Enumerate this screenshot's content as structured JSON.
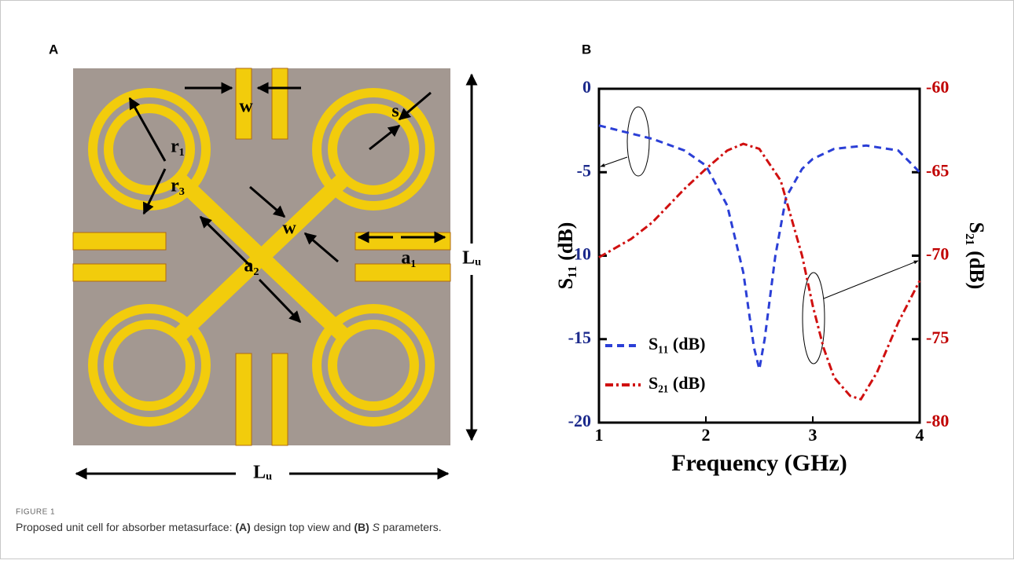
{
  "panel_a": {
    "label": "A",
    "labels": [
      "w",
      "s",
      "r₁",
      "r₃",
      "w",
      "a₂",
      "a₁",
      "Lᵤ",
      "Lᵤ"
    ]
  },
  "panel_b": {
    "label": "B"
  },
  "chart_data": {
    "type": "line",
    "xlabel": "Frequency (GHz)",
    "ylabel": "S₁₁ (dB)",
    "y2label": "S₂₁ (dB)",
    "xlim": [
      1,
      4
    ],
    "xticks": [
      1,
      2,
      3,
      4
    ],
    "ylim": [
      -20,
      0
    ],
    "yticks": [
      0,
      -5,
      {
        "value": -10,
        "label": "10"
      },
      -15,
      -20
    ],
    "y2lim": [
      -80,
      -60
    ],
    "y2ticks": [
      -60,
      -65,
      -70,
      -75,
      -80
    ],
    "ytick_color": "#1c2a8c",
    "y2tick_color": "#c00000",
    "grid": false,
    "legend": "lower left",
    "series": [
      {
        "name": "S₁₁ (dB)",
        "color": "#2b3fd6",
        "dash": "9,6",
        "x": [
          1,
          1.5,
          1.8,
          2.0,
          2.2,
          2.35,
          2.45,
          2.5,
          2.55,
          2.65,
          2.75,
          2.9,
          3.0,
          3.2,
          3.5,
          3.8,
          4.0
        ],
        "values": [
          -2.2,
          -3.0,
          -3.7,
          -4.6,
          -7,
          -11,
          -15.5,
          -16.8,
          -15,
          -10,
          -6.5,
          -4.8,
          -4.2,
          -3.6,
          -3.4,
          -3.7,
          -5.0
        ]
      },
      {
        "name": "S₂₁ (dB)",
        "color": "#d01010",
        "dash": "10,4,3,4",
        "axis": "y2",
        "x": [
          1,
          1.3,
          1.5,
          1.8,
          2.0,
          2.2,
          2.35,
          2.5,
          2.7,
          2.9,
          3.0,
          3.1,
          3.2,
          3.35,
          3.45,
          3.6,
          3.8,
          4.0
        ],
        "values": [
          -70.1,
          -69,
          -68,
          -66,
          -64.8,
          -63.7,
          -63.3,
          -63.6,
          -65.5,
          -70,
          -73,
          -75.5,
          -77.3,
          -78.4,
          -78.6,
          -77,
          -74,
          -71.5
        ]
      }
    ]
  },
  "caption": {
    "figure": "FIGURE 1",
    "parts": [
      "Proposed unit cell for absorber metasurface: ",
      "(A)",
      " design top view and ",
      "(B)",
      " ",
      "S",
      " parameters."
    ]
  }
}
